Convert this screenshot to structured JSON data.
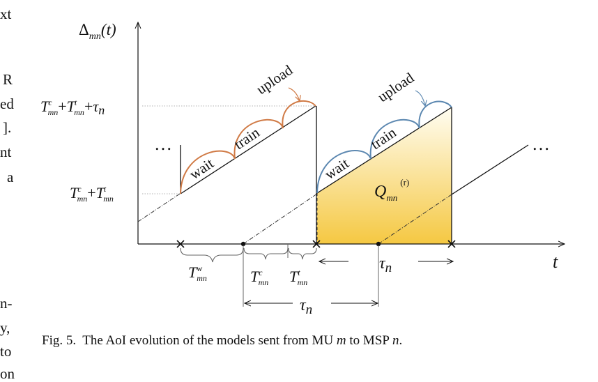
{
  "left_margin_text": [
    "xt",
    "R",
    "ed",
    "].",
    "nt",
    "a",
    "n-",
    "y,",
    "to",
    "on"
  ],
  "y_axis_label": {
    "base": "Δ",
    "sub": "mn",
    "rest": "(t)"
  },
  "x_axis_label": "t",
  "y_tick_upper": {
    "parts": [
      "T",
      "c",
      "mn",
      "+",
      "T",
      "t",
      "mn",
      "+",
      "τ",
      "n"
    ]
  },
  "y_tick_lower": {
    "parts": [
      "T",
      "c",
      "mn",
      "+",
      "T",
      "t",
      "mn"
    ]
  },
  "area_label": {
    "base": "Q",
    "sub": "mn",
    "sup": "(r)"
  },
  "phase_labels": {
    "wait_1": "wait",
    "train_1": "train",
    "upload_1": "upload",
    "wait_2": "wait",
    "train_2": "train",
    "upload_2": "upload"
  },
  "ellipsis_left": "…",
  "ellipsis_right": "…",
  "interval_labels": {
    "tw": {
      "base": "T",
      "sup": "w",
      "sub": "mn"
    },
    "tc": {
      "base": "T",
      "sup": "c",
      "sub": "mn"
    },
    "tt": {
      "base": "T",
      "sup": "t",
      "sub": "mn"
    },
    "tau_upper": {
      "base": "τ",
      "sub": "n"
    },
    "tau_lower": {
      "base": "τ",
      "sub": "n"
    }
  },
  "caption": {
    "prefix": "Fig. 5.",
    "text_a": "The AoI evolution of the models sent from MU ",
    "var_m": "m",
    "text_b": " to MSP ",
    "var_n": "n",
    "text_c": "."
  },
  "colors": {
    "axis": "#111111",
    "orange": "#d07a45",
    "blue": "#5b87b0",
    "fill_top": "#fffdf2",
    "fill_bottom": "#f5c842",
    "guide": "#888888",
    "brace": "#666666"
  }
}
